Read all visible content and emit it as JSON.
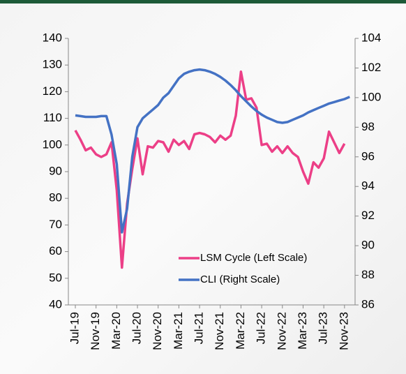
{
  "chart_data": {
    "type": "line",
    "categories": [
      "Jul-19",
      null,
      null,
      null,
      "Nov-19",
      null,
      null,
      null,
      "Mar-20",
      null,
      null,
      null,
      "Jul-20",
      null,
      null,
      null,
      "Nov-20",
      null,
      null,
      null,
      "Mar-21",
      null,
      null,
      null,
      "Jul-21",
      null,
      null,
      null,
      "Nov-21",
      null,
      null,
      null,
      "Mar-22",
      null,
      null,
      null,
      "Jul-22",
      null,
      null,
      null,
      "Nov-22",
      null,
      null,
      null,
      "Mar-23",
      null,
      null,
      null,
      "Jul-23",
      null,
      null,
      null,
      "Nov-23",
      null
    ],
    "series": [
      {
        "name": "LSM Cycle (Left Scale)",
        "color": "#ec3f87",
        "values": [
          105.5,
          102,
          98,
          99,
          96.5,
          95.5,
          96.5,
          101,
          83,
          54,
          78,
          91,
          102.5,
          89,
          99.5,
          99,
          101.5,
          101,
          97.5,
          102,
          100,
          101.5,
          98.5,
          104,
          104.5,
          104,
          103,
          101,
          103.5,
          102,
          103.5,
          111,
          127.5,
          117,
          117.5,
          114,
          100,
          100.5,
          97.5,
          99.5,
          97,
          99.5,
          97,
          95.5,
          90,
          85.5,
          93.5,
          91.5,
          95,
          105,
          101,
          97,
          100.5,
          null
        ]
      },
      {
        "name": "CLI (Right Scale)",
        "color": "#4472c4",
        "axis": "y2",
        "values": [
          98.8,
          98.75,
          98.7,
          98.7,
          98.7,
          98.75,
          98.75,
          97.5,
          95.5,
          90.9,
          92.5,
          96,
          98,
          98.6,
          98.9,
          99.2,
          99.5,
          100,
          100.3,
          100.8,
          101.3,
          101.6,
          101.75,
          101.85,
          101.9,
          101.85,
          101.75,
          101.6,
          101.4,
          101.15,
          100.85,
          100.5,
          100.1,
          99.75,
          99.4,
          99.1,
          98.85,
          98.65,
          98.5,
          98.35,
          98.3,
          98.35,
          98.5,
          98.65,
          98.8,
          99.0,
          99.15,
          99.3,
          99.45,
          99.6,
          99.7,
          99.8,
          99.9,
          100.05
        ]
      }
    ],
    "ylim": [
      40,
      140
    ],
    "yticks": [
      40,
      50,
      60,
      70,
      80,
      90,
      100,
      110,
      120,
      130,
      140
    ],
    "y2lim": [
      86,
      104
    ],
    "y2ticks": [
      86,
      88,
      90,
      92,
      94,
      96,
      98,
      100,
      102,
      104
    ]
  }
}
